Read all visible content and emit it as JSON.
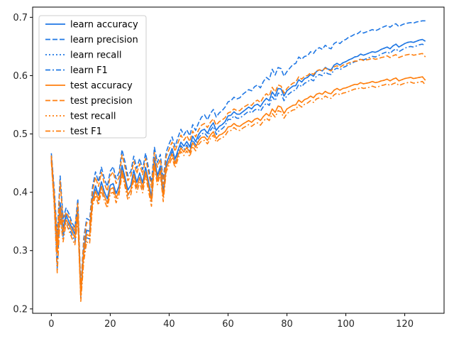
{
  "chart_data": {
    "type": "line",
    "title": "",
    "xlabel": "",
    "ylabel": "",
    "xlim": [
      -6.35,
      133.35
    ],
    "ylim": [
      0.1925,
      0.7175
    ],
    "x_ticks": [
      0,
      20,
      40,
      60,
      80,
      100,
      120
    ],
    "y_ticks": [
      0.2,
      0.3,
      0.4,
      0.5,
      0.6,
      0.7
    ],
    "x_tick_labels": [
      "0",
      "20",
      "40",
      "60",
      "80",
      "100",
      "120"
    ],
    "y_tick_labels": [
      "0.2",
      "0.3",
      "0.4",
      "0.5",
      "0.6",
      "0.7"
    ],
    "grid": false,
    "legend_position": "upper-left",
    "x_start": 0,
    "x_step": 1,
    "series": [
      {
        "name": "learn accuracy",
        "color": "#1f77e4",
        "dash": "solid",
        "values": [
          0.462,
          0.391,
          0.306,
          0.382,
          0.338,
          0.362,
          0.349,
          0.339,
          0.328,
          0.371,
          0.229,
          0.302,
          0.335,
          0.333,
          0.392,
          0.411,
          0.395,
          0.418,
          0.401,
          0.389,
          0.412,
          0.415,
          0.398,
          0.411,
          0.446,
          0.426,
          0.404,
          0.412,
          0.438,
          0.417,
          0.433,
          0.416,
          0.443,
          0.418,
          0.392,
          0.459,
          0.428,
          0.445,
          0.4,
          0.449,
          0.462,
          0.475,
          0.457,
          0.472,
          0.486,
          0.479,
          0.487,
          0.478,
          0.496,
          0.487,
          0.499,
          0.506,
          0.508,
          0.501,
          0.512,
          0.519,
          0.506,
          0.513,
          0.516,
          0.521,
          0.531,
          0.532,
          0.538,
          0.534,
          0.534,
          0.538,
          0.542,
          0.546,
          0.543,
          0.549,
          0.551,
          0.547,
          0.555,
          0.561,
          0.557,
          0.572,
          0.565,
          0.578,
          0.577,
          0.565,
          0.574,
          0.578,
          0.582,
          0.583,
          0.593,
          0.589,
          0.595,
          0.597,
          0.602,
          0.599,
          0.607,
          0.61,
          0.608,
          0.614,
          0.611,
          0.61,
          0.618,
          0.621,
          0.618,
          0.622,
          0.624,
          0.627,
          0.629,
          0.632,
          0.633,
          0.637,
          0.635,
          0.637,
          0.639,
          0.641,
          0.64,
          0.642,
          0.645,
          0.647,
          0.649,
          0.646,
          0.651,
          0.654,
          0.649,
          0.652,
          0.655,
          0.657,
          0.658,
          0.657,
          0.659,
          0.661,
          0.662,
          0.659
        ]
      },
      {
        "name": "learn precision",
        "color": "#1f77e4",
        "dash": "dashed",
        "values": [
          0.467,
          0.404,
          0.325,
          0.428,
          0.355,
          0.373,
          0.363,
          0.348,
          0.339,
          0.389,
          0.237,
          0.321,
          0.355,
          0.352,
          0.41,
          0.435,
          0.418,
          0.443,
          0.423,
          0.41,
          0.436,
          0.444,
          0.423,
          0.434,
          0.473,
          0.452,
          0.428,
          0.436,
          0.462,
          0.441,
          0.458,
          0.439,
          0.467,
          0.442,
          0.416,
          0.477,
          0.451,
          0.465,
          0.422,
          0.469,
          0.483,
          0.495,
          0.478,
          0.494,
          0.508,
          0.498,
          0.507,
          0.497,
          0.516,
          0.506,
          0.519,
          0.529,
          0.533,
          0.524,
          0.535,
          0.542,
          0.529,
          0.536,
          0.54,
          0.546,
          0.555,
          0.557,
          0.563,
          0.56,
          0.562,
          0.568,
          0.572,
          0.576,
          0.574,
          0.581,
          0.584,
          0.579,
          0.59,
          0.597,
          0.593,
          0.611,
          0.601,
          0.614,
          0.612,
          0.599,
          0.607,
          0.613,
          0.619,
          0.621,
          0.632,
          0.628,
          0.633,
          0.634,
          0.641,
          0.638,
          0.645,
          0.648,
          0.645,
          0.652,
          0.648,
          0.646,
          0.655,
          0.658,
          0.655,
          0.66,
          0.662,
          0.666,
          0.668,
          0.671,
          0.672,
          0.676,
          0.673,
          0.675,
          0.677,
          0.679,
          0.677,
          0.679,
          0.682,
          0.684,
          0.686,
          0.683,
          0.687,
          0.689,
          0.684,
          0.687,
          0.689,
          0.69,
          0.691,
          0.69,
          0.692,
          0.693,
          0.694,
          0.694
        ]
      },
      {
        "name": "learn recall",
        "color": "#1f77e4",
        "dash": "dotted",
        "values": [
          0.462,
          0.391,
          0.306,
          0.382,
          0.338,
          0.362,
          0.349,
          0.339,
          0.328,
          0.371,
          0.229,
          0.302,
          0.335,
          0.333,
          0.392,
          0.411,
          0.395,
          0.418,
          0.401,
          0.389,
          0.412,
          0.415,
          0.398,
          0.411,
          0.446,
          0.426,
          0.404,
          0.412,
          0.438,
          0.417,
          0.433,
          0.416,
          0.443,
          0.418,
          0.392,
          0.459,
          0.428,
          0.445,
          0.4,
          0.449,
          0.462,
          0.475,
          0.457,
          0.472,
          0.486,
          0.479,
          0.487,
          0.478,
          0.496,
          0.487,
          0.499,
          0.506,
          0.508,
          0.501,
          0.512,
          0.519,
          0.506,
          0.513,
          0.516,
          0.521,
          0.531,
          0.532,
          0.538,
          0.534,
          0.534,
          0.538,
          0.542,
          0.546,
          0.543,
          0.549,
          0.551,
          0.547,
          0.555,
          0.561,
          0.557,
          0.572,
          0.565,
          0.578,
          0.577,
          0.565,
          0.574,
          0.578,
          0.582,
          0.583,
          0.593,
          0.589,
          0.595,
          0.597,
          0.602,
          0.599,
          0.607,
          0.61,
          0.608,
          0.614,
          0.611,
          0.61,
          0.618,
          0.621,
          0.618,
          0.622,
          0.624,
          0.627,
          0.629,
          0.632,
          0.633,
          0.637,
          0.635,
          0.637,
          0.639,
          0.641,
          0.64,
          0.642,
          0.645,
          0.647,
          0.649,
          0.646,
          0.651,
          0.654,
          0.649,
          0.652,
          0.655,
          0.657,
          0.658,
          0.657,
          0.659,
          0.661,
          0.662,
          0.659
        ]
      },
      {
        "name": "learn F1",
        "color": "#1f77e4",
        "dash": "dashdot",
        "values": [
          0.455,
          0.382,
          0.27,
          0.366,
          0.322,
          0.356,
          0.339,
          0.327,
          0.316,
          0.362,
          0.219,
          0.288,
          0.322,
          0.32,
          0.384,
          0.404,
          0.386,
          0.41,
          0.393,
          0.381,
          0.405,
          0.407,
          0.39,
          0.404,
          0.44,
          0.418,
          0.395,
          0.404,
          0.43,
          0.408,
          0.425,
          0.407,
          0.436,
          0.41,
          0.383,
          0.453,
          0.421,
          0.439,
          0.392,
          0.443,
          0.455,
          0.469,
          0.45,
          0.466,
          0.48,
          0.473,
          0.481,
          0.471,
          0.49,
          0.481,
          0.493,
          0.5,
          0.502,
          0.495,
          0.506,
          0.513,
          0.499,
          0.506,
          0.509,
          0.514,
          0.525,
          0.525,
          0.531,
          0.527,
          0.527,
          0.531,
          0.535,
          0.539,
          0.536,
          0.541,
          0.543,
          0.539,
          0.547,
          0.553,
          0.549,
          0.564,
          0.557,
          0.57,
          0.569,
          0.557,
          0.566,
          0.57,
          0.574,
          0.575,
          0.585,
          0.581,
          0.587,
          0.589,
          0.594,
          0.591,
          0.599,
          0.602,
          0.6,
          0.606,
          0.603,
          0.602,
          0.61,
          0.613,
          0.61,
          0.614,
          0.616,
          0.619,
          0.621,
          0.624,
          0.625,
          0.629,
          0.627,
          0.629,
          0.631,
          0.633,
          0.632,
          0.634,
          0.637,
          0.639,
          0.641,
          0.638,
          0.643,
          0.646,
          0.641,
          0.644,
          0.647,
          0.649,
          0.65,
          0.649,
          0.651,
          0.653,
          0.654,
          0.651
        ]
      },
      {
        "name": "test accuracy",
        "color": "#ff7f0e",
        "dash": "solid",
        "values": [
          0.459,
          0.384,
          0.296,
          0.374,
          0.332,
          0.353,
          0.344,
          0.333,
          0.322,
          0.362,
          0.222,
          0.295,
          0.328,
          0.325,
          0.384,
          0.402,
          0.387,
          0.41,
          0.394,
          0.381,
          0.405,
          0.408,
          0.39,
          0.403,
          0.437,
          0.418,
          0.396,
          0.404,
          0.43,
          0.409,
          0.425,
          0.408,
          0.435,
          0.41,
          0.385,
          0.45,
          0.42,
          0.437,
          0.392,
          0.441,
          0.454,
          0.466,
          0.449,
          0.463,
          0.476,
          0.469,
          0.477,
          0.468,
          0.485,
          0.477,
          0.488,
          0.494,
          0.495,
          0.489,
          0.498,
          0.504,
          0.492,
          0.498,
          0.5,
          0.504,
          0.512,
          0.513,
          0.518,
          0.514,
          0.513,
          0.517,
          0.52,
          0.523,
          0.52,
          0.525,
          0.527,
          0.523,
          0.53,
          0.535,
          0.531,
          0.543,
          0.537,
          0.548,
          0.546,
          0.535,
          0.543,
          0.546,
          0.549,
          0.55,
          0.558,
          0.554,
          0.559,
          0.561,
          0.565,
          0.562,
          0.568,
          0.57,
          0.568,
          0.573,
          0.57,
          0.569,
          0.575,
          0.578,
          0.575,
          0.578,
          0.579,
          0.581,
          0.583,
          0.585,
          0.585,
          0.588,
          0.586,
          0.587,
          0.588,
          0.59,
          0.588,
          0.589,
          0.591,
          0.592,
          0.594,
          0.591,
          0.594,
          0.596,
          0.591,
          0.593,
          0.595,
          0.596,
          0.597,
          0.595,
          0.596,
          0.597,
          0.598,
          0.592
        ]
      },
      {
        "name": "test precision",
        "color": "#ff7f0e",
        "dash": "dashed",
        "values": [
          0.463,
          0.396,
          0.316,
          0.419,
          0.349,
          0.366,
          0.357,
          0.343,
          0.334,
          0.381,
          0.231,
          0.314,
          0.348,
          0.345,
          0.403,
          0.426,
          0.41,
          0.434,
          0.415,
          0.402,
          0.428,
          0.435,
          0.415,
          0.426,
          0.464,
          0.443,
          0.42,
          0.428,
          0.453,
          0.432,
          0.449,
          0.43,
          0.458,
          0.434,
          0.408,
          0.468,
          0.443,
          0.457,
          0.414,
          0.461,
          0.474,
          0.486,
          0.47,
          0.485,
          0.498,
          0.489,
          0.497,
          0.487,
          0.505,
          0.495,
          0.507,
          0.515,
          0.518,
          0.511,
          0.52,
          0.526,
          0.515,
          0.521,
          0.524,
          0.528,
          0.536,
          0.538,
          0.543,
          0.54,
          0.54,
          0.545,
          0.548,
          0.551,
          0.549,
          0.555,
          0.558,
          0.554,
          0.563,
          0.569,
          0.565,
          0.58,
          0.572,
          0.584,
          0.582,
          0.57,
          0.578,
          0.583,
          0.587,
          0.589,
          0.598,
          0.594,
          0.599,
          0.6,
          0.605,
          0.602,
          0.608,
          0.61,
          0.608,
          0.613,
          0.61,
          0.608,
          0.615,
          0.617,
          0.614,
          0.618,
          0.619,
          0.622,
          0.623,
          0.625,
          0.625,
          0.628,
          0.626,
          0.627,
          0.628,
          0.63,
          0.628,
          0.629,
          0.631,
          0.632,
          0.634,
          0.631,
          0.634,
          0.636,
          0.631,
          0.633,
          0.635,
          0.636,
          0.637,
          0.635,
          0.636,
          0.637,
          0.638,
          0.632
        ]
      },
      {
        "name": "test recall",
        "color": "#ff7f0e",
        "dash": "dotted",
        "values": [
          0.459,
          0.384,
          0.296,
          0.374,
          0.332,
          0.353,
          0.344,
          0.333,
          0.322,
          0.362,
          0.222,
          0.295,
          0.328,
          0.325,
          0.384,
          0.402,
          0.387,
          0.41,
          0.394,
          0.381,
          0.405,
          0.408,
          0.39,
          0.403,
          0.437,
          0.418,
          0.396,
          0.404,
          0.43,
          0.409,
          0.425,
          0.408,
          0.435,
          0.41,
          0.385,
          0.45,
          0.42,
          0.437,
          0.392,
          0.441,
          0.454,
          0.466,
          0.449,
          0.463,
          0.476,
          0.469,
          0.477,
          0.468,
          0.485,
          0.477,
          0.488,
          0.494,
          0.495,
          0.489,
          0.498,
          0.504,
          0.492,
          0.498,
          0.5,
          0.504,
          0.512,
          0.513,
          0.518,
          0.514,
          0.513,
          0.517,
          0.52,
          0.523,
          0.52,
          0.525,
          0.527,
          0.523,
          0.53,
          0.535,
          0.531,
          0.543,
          0.537,
          0.548,
          0.546,
          0.535,
          0.543,
          0.546,
          0.549,
          0.55,
          0.558,
          0.554,
          0.559,
          0.561,
          0.565,
          0.562,
          0.568,
          0.57,
          0.568,
          0.573,
          0.57,
          0.569,
          0.575,
          0.578,
          0.575,
          0.578,
          0.579,
          0.581,
          0.583,
          0.585,
          0.585,
          0.588,
          0.586,
          0.587,
          0.588,
          0.59,
          0.588,
          0.589,
          0.591,
          0.592,
          0.594,
          0.591,
          0.594,
          0.596,
          0.591,
          0.593,
          0.595,
          0.596,
          0.597,
          0.595,
          0.596,
          0.597,
          0.598,
          0.592
        ]
      },
      {
        "name": "test F1",
        "color": "#ff7f0e",
        "dash": "dashdot",
        "values": [
          0.452,
          0.375,
          0.262,
          0.358,
          0.315,
          0.347,
          0.334,
          0.321,
          0.31,
          0.353,
          0.213,
          0.281,
          0.315,
          0.312,
          0.376,
          0.395,
          0.378,
          0.402,
          0.386,
          0.373,
          0.398,
          0.4,
          0.382,
          0.396,
          0.431,
          0.41,
          0.387,
          0.396,
          0.422,
          0.4,
          0.417,
          0.399,
          0.428,
          0.402,
          0.376,
          0.444,
          0.413,
          0.431,
          0.384,
          0.435,
          0.447,
          0.46,
          0.442,
          0.457,
          0.47,
          0.463,
          0.471,
          0.461,
          0.479,
          0.471,
          0.482,
          0.488,
          0.489,
          0.483,
          0.492,
          0.498,
          0.486,
          0.491,
          0.493,
          0.497,
          0.505,
          0.506,
          0.511,
          0.507,
          0.506,
          0.51,
          0.513,
          0.516,
          0.513,
          0.517,
          0.519,
          0.515,
          0.522,
          0.527,
          0.523,
          0.535,
          0.529,
          0.54,
          0.538,
          0.527,
          0.535,
          0.538,
          0.541,
          0.542,
          0.55,
          0.546,
          0.551,
          0.553,
          0.557,
          0.554,
          0.56,
          0.562,
          0.56,
          0.565,
          0.562,
          0.561,
          0.567,
          0.57,
          0.567,
          0.57,
          0.571,
          0.573,
          0.575,
          0.577,
          0.577,
          0.58,
          0.578,
          0.579,
          0.58,
          0.582,
          0.58,
          0.581,
          0.583,
          0.584,
          0.586,
          0.583,
          0.586,
          0.588,
          0.583,
          0.585,
          0.587,
          0.588,
          0.589,
          0.587,
          0.588,
          0.589,
          0.59,
          0.584
        ]
      }
    ]
  }
}
